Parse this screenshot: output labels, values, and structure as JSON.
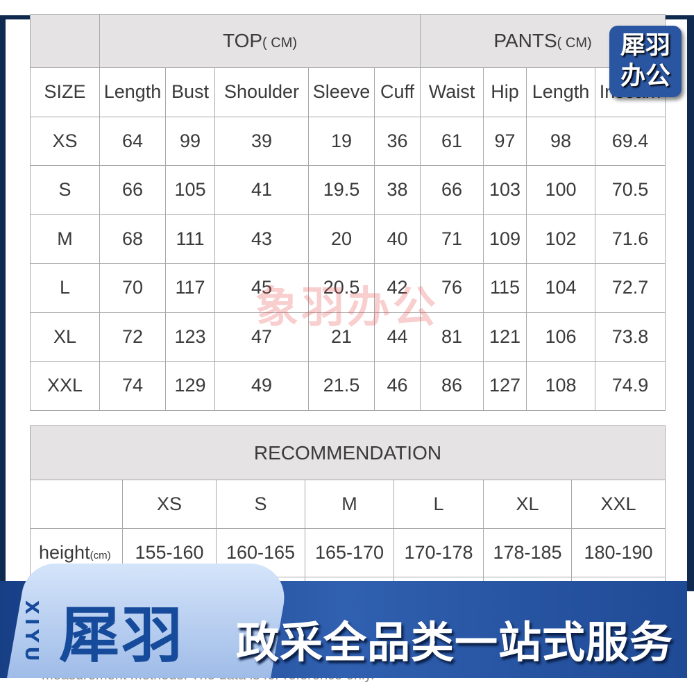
{
  "size_chart": {
    "top_group": "TOP",
    "pants_group": "PANTS",
    "unit": "( CM)",
    "columns": [
      "SIZE",
      "Length",
      "Bust",
      "Shoulder",
      "Sleeve",
      "Cuff",
      "Waist",
      "Hip",
      "Length",
      "Inseam"
    ],
    "rows": [
      [
        "XS",
        "64",
        "99",
        "39",
        "19",
        "36",
        "61",
        "97",
        "98",
        "69.4"
      ],
      [
        "S",
        "66",
        "105",
        "41",
        "19.5",
        "38",
        "66",
        "103",
        "100",
        "70.5"
      ],
      [
        "M",
        "68",
        "111",
        "43",
        "20",
        "40",
        "71",
        "109",
        "102",
        "71.6"
      ],
      [
        "L",
        "70",
        "117",
        "45",
        "20.5",
        "42",
        "76",
        "115",
        "104",
        "72.7"
      ],
      [
        "XL",
        "72",
        "123",
        "47",
        "21",
        "44",
        "81",
        "121",
        "106",
        "73.8"
      ],
      [
        "XXL",
        "74",
        "129",
        "49",
        "21.5",
        "46",
        "86",
        "127",
        "108",
        "74.9"
      ]
    ]
  },
  "recommendation": {
    "title": "RECOMMENDATION",
    "sizes": [
      "XS",
      "S",
      "M",
      "L",
      "XL",
      "XXL"
    ],
    "height_label": "height",
    "height_unit": "(cm)",
    "heights": [
      "155-160",
      "160-165",
      "165-170",
      "170-178",
      "178-185",
      "180-190"
    ]
  },
  "watermark": "象羽办公",
  "badge": {
    "line1": "犀羽",
    "line2": "办公"
  },
  "banner": {
    "logo": "犀羽",
    "logo_latin": "XIYU",
    "slogan": "政采全品类一站式服务"
  },
  "footer_note": "measurement methods. The data is for reference only."
}
